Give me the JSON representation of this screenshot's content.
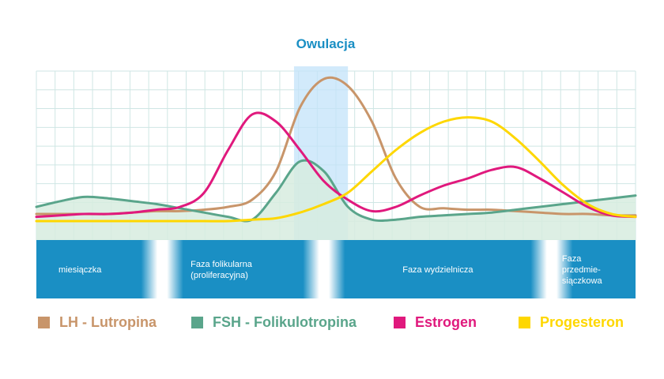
{
  "chart_data": {
    "type": "line",
    "title": "Owulacja",
    "xlabel": "",
    "ylabel": "",
    "x": [
      0,
      4,
      8,
      12,
      16,
      20,
      24,
      28,
      32,
      36,
      40,
      44,
      48,
      52,
      56,
      60,
      64,
      68,
      72,
      76,
      80,
      84,
      88,
      92,
      96,
      100
    ],
    "ylim": [
      0,
      100
    ],
    "series": [
      {
        "name": "LH - Lutropina",
        "color": "#c8956a",
        "values": [
          5,
          5,
          5,
          5,
          6,
          7,
          7,
          8,
          10,
          15,
          35,
          80,
          100,
          95,
          70,
          30,
          10,
          9,
          8,
          8,
          7,
          6,
          5,
          5,
          4,
          4
        ]
      },
      {
        "name": "FSH - Folikulotropina",
        "color": "#5aa58b",
        "values": [
          10,
          14,
          17,
          16,
          14,
          12,
          9,
          6,
          3,
          1,
          20,
          42,
          35,
          10,
          1,
          1,
          3,
          4,
          5,
          6,
          8,
          10,
          12,
          14,
          16,
          18
        ]
      },
      {
        "name": "Estrogen",
        "color": "#e0197d",
        "values": [
          3,
          4,
          5,
          5,
          6,
          8,
          10,
          20,
          50,
          75,
          70,
          50,
          28,
          15,
          7,
          10,
          18,
          25,
          30,
          36,
          38,
          30,
          20,
          10,
          4,
          3
        ]
      },
      {
        "name": "Progesteron",
        "color": "#fed700",
        "values": [
          0,
          0,
          0,
          0,
          0,
          0,
          0,
          0,
          0,
          1,
          2,
          6,
          12,
          20,
          35,
          50,
          62,
          70,
          73,
          70,
          58,
          42,
          25,
          12,
          5,
          3
        ]
      }
    ],
    "phases": [
      {
        "label": "miesiączka",
        "x_start": 0,
        "x_end": 21
      },
      {
        "label": "Faza folikularna\n(proliferacyjna)",
        "x_start": 21,
        "x_end": 48
      },
      {
        "label": "Faza wydzielnicza",
        "x_start": 48,
        "x_end": 86
      },
      {
        "label": "Faza\nprzedmie-\nsiączkowa",
        "x_start": 86,
        "x_end": 100
      }
    ],
    "ovulation_x_range": [
      43,
      52
    ],
    "grid": true,
    "legend_position": "bottom"
  },
  "colors": {
    "title": "#1a8fc4",
    "phase_band": "#1a8fc4",
    "grid": "#cfe6e4",
    "fill": "#d7ecdf",
    "ovulation_band": "#c3e3fa"
  }
}
